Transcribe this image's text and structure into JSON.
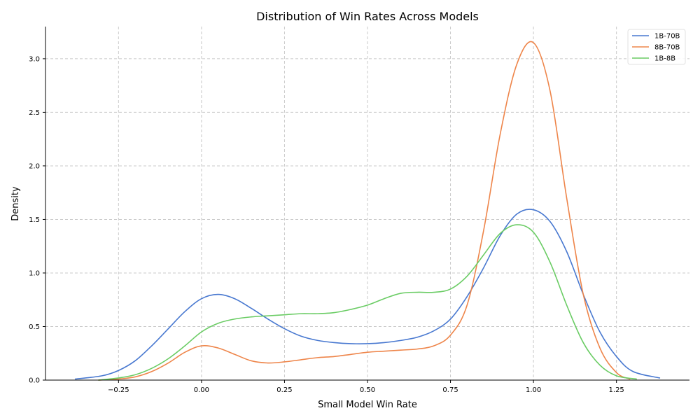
{
  "chart_data": {
    "type": "line",
    "title": "Distribution of Win Rates Across Models",
    "xlabel": "Small Model Win Rate",
    "ylabel": "Density",
    "xlim": [
      -0.47,
      1.47
    ],
    "ylim": [
      0,
      3.3
    ],
    "xticks": [
      -0.25,
      0.0,
      0.25,
      0.5,
      0.75,
      1.0,
      1.25
    ],
    "xtick_labels": [
      "−0.25",
      "0.00",
      "0.25",
      "0.50",
      "0.75",
      "1.00",
      "1.25"
    ],
    "yticks": [
      0.0,
      0.5,
      1.0,
      1.5,
      2.0,
      2.5,
      3.0
    ],
    "ytick_labels": [
      "0.0",
      "0.5",
      "1.0",
      "1.5",
      "2.0",
      "2.5",
      "3.0"
    ],
    "grid": true,
    "legend_position": "top-right",
    "series": [
      {
        "name": "1B-70B",
        "color": "#4878d0",
        "x": [
          -0.38,
          -0.3,
          -0.25,
          -0.2,
          -0.15,
          -0.1,
          -0.05,
          0.0,
          0.05,
          0.1,
          0.15,
          0.2,
          0.25,
          0.3,
          0.35,
          0.4,
          0.45,
          0.5,
          0.55,
          0.6,
          0.65,
          0.7,
          0.75,
          0.8,
          0.85,
          0.9,
          0.95,
          1.0,
          1.05,
          1.1,
          1.15,
          1.2,
          1.25,
          1.3,
          1.38
        ],
        "y": [
          0.01,
          0.04,
          0.09,
          0.18,
          0.32,
          0.48,
          0.64,
          0.76,
          0.8,
          0.76,
          0.67,
          0.57,
          0.48,
          0.41,
          0.37,
          0.35,
          0.34,
          0.34,
          0.35,
          0.37,
          0.4,
          0.46,
          0.57,
          0.78,
          1.05,
          1.35,
          1.55,
          1.59,
          1.48,
          1.2,
          0.8,
          0.45,
          0.22,
          0.08,
          0.02
        ]
      },
      {
        "name": "8B-70B",
        "color": "#ee854a",
        "x": [
          -0.31,
          -0.25,
          -0.2,
          -0.15,
          -0.1,
          -0.05,
          0.0,
          0.05,
          0.1,
          0.15,
          0.2,
          0.25,
          0.3,
          0.35,
          0.4,
          0.45,
          0.5,
          0.55,
          0.6,
          0.65,
          0.7,
          0.75,
          0.8,
          0.85,
          0.9,
          0.95,
          1.0,
          1.05,
          1.1,
          1.15,
          1.2,
          1.25,
          1.29
        ],
        "y": [
          0.0,
          0.01,
          0.03,
          0.08,
          0.16,
          0.26,
          0.32,
          0.3,
          0.24,
          0.18,
          0.16,
          0.17,
          0.19,
          0.21,
          0.22,
          0.24,
          0.26,
          0.27,
          0.28,
          0.29,
          0.32,
          0.42,
          0.7,
          1.4,
          2.3,
          2.95,
          3.15,
          2.7,
          1.7,
          0.8,
          0.3,
          0.07,
          0.01
        ]
      },
      {
        "name": "1B-8B",
        "color": "#6acc64",
        "x": [
          -0.31,
          -0.25,
          -0.2,
          -0.15,
          -0.1,
          -0.05,
          0.0,
          0.05,
          0.1,
          0.15,
          0.2,
          0.25,
          0.3,
          0.35,
          0.4,
          0.45,
          0.5,
          0.55,
          0.6,
          0.65,
          0.7,
          0.75,
          0.8,
          0.85,
          0.9,
          0.95,
          1.0,
          1.05,
          1.1,
          1.15,
          1.2,
          1.25,
          1.31
        ],
        "y": [
          0.0,
          0.02,
          0.05,
          0.11,
          0.2,
          0.32,
          0.45,
          0.53,
          0.57,
          0.59,
          0.6,
          0.61,
          0.62,
          0.62,
          0.63,
          0.66,
          0.7,
          0.76,
          0.81,
          0.82,
          0.82,
          0.85,
          0.97,
          1.17,
          1.37,
          1.45,
          1.38,
          1.1,
          0.7,
          0.35,
          0.14,
          0.04,
          0.01
        ]
      }
    ]
  }
}
